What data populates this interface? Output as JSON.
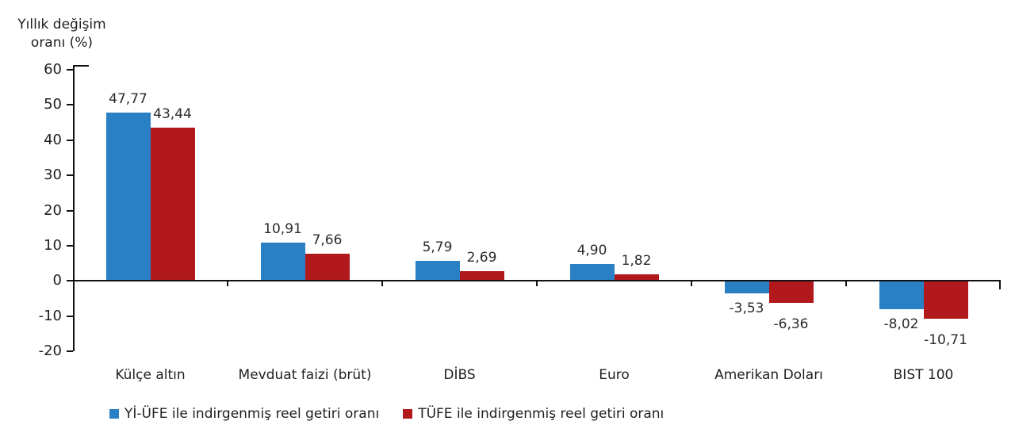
{
  "y_axis_title": {
    "line1": "Yıllık değişim",
    "line2": "oranı (%)"
  },
  "chart_data": {
    "type": "bar",
    "title": "",
    "xlabel": "",
    "ylabel": "Yıllık değişim oranı (%)",
    "ylim": [
      -20,
      60
    ],
    "yticks": [
      60,
      50,
      40,
      30,
      20,
      10,
      0,
      -10,
      -20
    ],
    "grid": false,
    "legend_position": "bottom",
    "decimal_separator": ",",
    "axis_color": "#111111",
    "text_color": "#1f1f1f",
    "categories": [
      "Külçe altın",
      "Mevduat faizi (brüt)",
      "DİBS",
      "Euro",
      "Amerikan Doları",
      "BIST 100"
    ],
    "series": [
      {
        "name": "Yİ-ÜFE ile indirgenmiş reel getiri oranı",
        "color": "#2980c4",
        "values": [
          47.77,
          10.91,
          5.79,
          4.9,
          -3.53,
          -8.02
        ],
        "labels": [
          "47,77",
          "10,91",
          "5,79",
          "4,90",
          "-3,53",
          "-8,02"
        ]
      },
      {
        "name": "TÜFE ile indirgenmiş reel getiri oranı",
        "color": "#b2191d",
        "values": [
          43.44,
          7.66,
          2.69,
          1.82,
          -6.36,
          -10.71
        ],
        "labels": [
          "43,44",
          "7,66",
          "2,69",
          "1,82",
          "-6,36",
          "-10,71"
        ]
      }
    ]
  }
}
